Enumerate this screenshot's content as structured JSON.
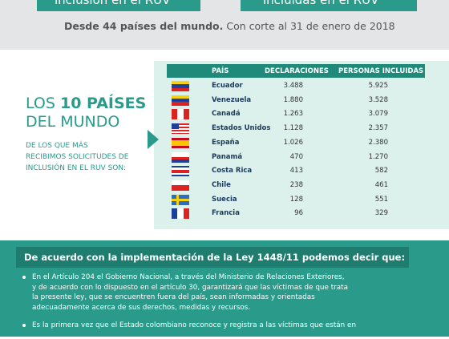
{
  "top": {
    "box_left": "inclusión en el RUV",
    "box_right": "incluidas en el RUV",
    "note_bold": "Desde 44 países del mundo.",
    "note_rest": "Con corte al 31 de enero de 2018"
  },
  "side": {
    "title_a": "LOS",
    "title_b": "10 PAÍSES",
    "title_c": "DEL MUNDO",
    "subtitle": [
      "DE LOS QUE MÁS",
      "RECIBIMOS SOLICITUDES DE",
      "INCLUSIÓN EN EL RUV SON:"
    ]
  },
  "table": {
    "header": [
      "PAÍS",
      "DECLARACIONES",
      "PERSONAS INCLUIDAS"
    ],
    "rows": [
      [
        "Ecuador",
        "3.488",
        "5.925"
      ],
      [
        "Venezuela",
        "1.880",
        "3.528"
      ],
      [
        "Canadá",
        "1.263",
        "3.079"
      ],
      [
        "Estados Unidos",
        "1.128",
        "2.357"
      ],
      [
        "España",
        "1.026",
        "2.380"
      ],
      [
        "Panamá",
        "470",
        "1.270"
      ],
      [
        "Costa Rica",
        "413",
        "582"
      ],
      [
        "Chile",
        "238",
        "461"
      ],
      [
        "Suecia",
        "128",
        "551"
      ],
      [
        "Francia",
        "96",
        "329"
      ]
    ]
  },
  "law": {
    "heading": "De acuerdo con la implementación de la Ley 1448/11 podemos decir que:",
    "bullets": [
      [
        "En el Artículo 204 el Gobierno Nacional, a través del Ministerio de Relaciones Exteriores,",
        "y de acuerdo con lo dispuesto en el artículo 30, garantizará que las víctimas de que trata",
        "la presente ley, que se encuentren fuera del país, sean informadas y orientadas",
        "adecuadamente acerca de sus derechos, medidas y recursos."
      ],
      [
        "Es la primera vez que el Estado colombiano reconoce y registra a las víctimas que están en"
      ]
    ]
  }
}
